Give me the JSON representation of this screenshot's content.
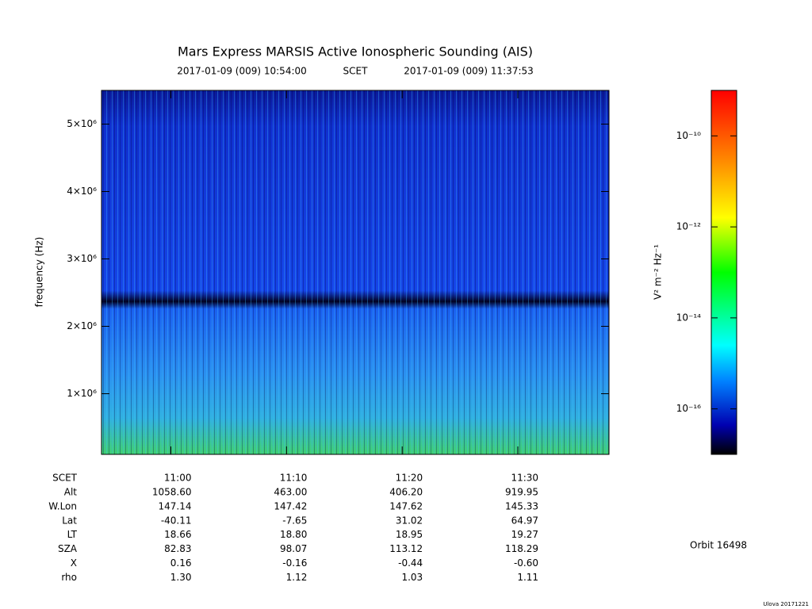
{
  "chart_data": {
    "type": "spectrogram",
    "title": "Mars Express MARSIS Active Ionospheric Sounding (AIS)",
    "start_time": "2017-01-09 (009) 10:54:00",
    "time_label": "SCET",
    "end_time": "2017-01-09 (009) 11:37:53",
    "y_label": "frequency (Hz)",
    "xlim": [
      654,
      697.883
    ],
    "xticks": [
      {
        "value": 660,
        "label": "11:00"
      },
      {
        "value": 670,
        "label": "11:10"
      },
      {
        "value": 680,
        "label": "11:20"
      },
      {
        "value": 690,
        "label": "11:30"
      }
    ],
    "ylim": [
      100000,
      5500000
    ],
    "yticks": [
      {
        "value": 1000000,
        "label": "1×10⁶"
      },
      {
        "value": 2000000,
        "label": "2×10⁶"
      },
      {
        "value": 3000000,
        "label": "3×10⁶"
      },
      {
        "value": 4000000,
        "label": "4×10⁶"
      },
      {
        "value": 5000000,
        "label": "5×10⁶"
      }
    ],
    "colorbar_label": "V² m⁻² Hz⁻¹",
    "zlim": [
      1e-17,
      1e-09
    ],
    "zlog": true,
    "zticks": [
      {
        "value": 1e-16,
        "label": "10⁻¹⁶"
      },
      {
        "value": 1e-14,
        "label": "10⁻¹⁴"
      },
      {
        "value": 1e-12,
        "label": "10⁻¹²"
      },
      {
        "value": 1e-10,
        "label": "10⁻¹⁰"
      }
    ],
    "ephemeris": [
      {
        "label": "Alt",
        "values": [
          "1058.60",
          "463.00",
          "406.20",
          "919.95"
        ]
      },
      {
        "label": "W.Lon",
        "values": [
          "147.14",
          "147.42",
          "147.62",
          "145.33"
        ]
      },
      {
        "label": "Lat",
        "values": [
          "-40.11",
          "-7.65",
          "31.02",
          "64.97"
        ]
      },
      {
        "label": "LT",
        "values": [
          "18.66",
          "18.80",
          "18.95",
          "19.27"
        ]
      },
      {
        "label": "SZA",
        "values": [
          "82.83",
          "98.07",
          "113.12",
          "118.29"
        ]
      },
      {
        "label": "X",
        "values": [
          "0.16",
          "-0.16",
          "-0.44",
          "-0.60"
        ]
      },
      {
        "label": "rho",
        "values": [
          "1.30",
          "1.12",
          "1.03",
          "1.11"
        ]
      }
    ],
    "orbit": "Orbit 16498",
    "footer": "Ulova 20171221"
  }
}
